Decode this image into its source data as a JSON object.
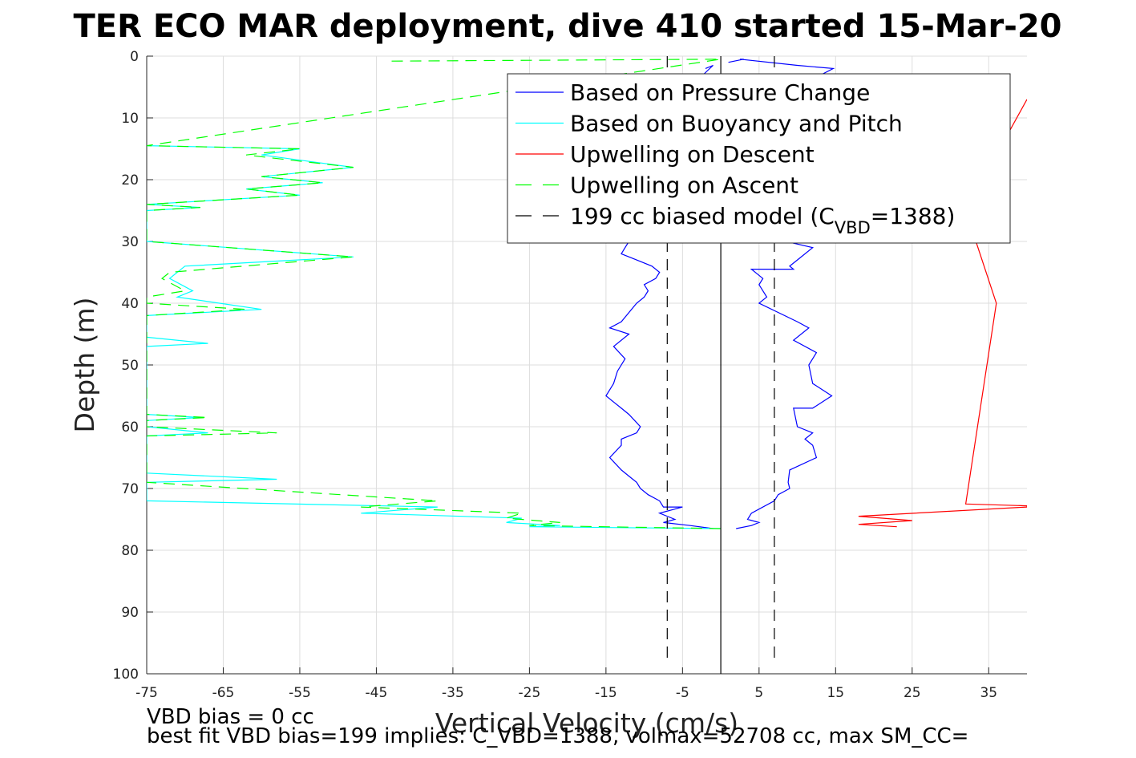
{
  "chart_data": {
    "type": "line",
    "title": "TER ECO MAR deployment, dive 410 started 15-Mar-20",
    "xlabel": "Vertical Velocity (cm/s)",
    "ylabel": "Depth (m)",
    "xlim": [
      -75,
      40
    ],
    "ylim": [
      0,
      100
    ],
    "y_reversed": true,
    "grid": true,
    "x_ticks": [
      -75,
      -65,
      -55,
      -45,
      -35,
      -25,
      -15,
      -5,
      5,
      15,
      25,
      35
    ],
    "y_ticks": [
      0,
      10,
      20,
      30,
      40,
      50,
      60,
      70,
      80,
      90,
      100
    ],
    "legend_position": "top-right",
    "series": [
      {
        "name": "Based on Pressure Change",
        "color": "#0000ff",
        "style": "solid",
        "x": [
          1,
          3,
          2.5,
          10,
          14.7,
          10,
          8,
          7,
          10,
          8.5,
          12,
          10,
          9,
          9.5,
          7,
          4,
          5.5,
          5,
          5.5,
          6,
          5,
          10,
          11.5,
          9.5,
          12.5,
          11.5,
          12,
          14.5,
          12,
          9.5,
          10,
          12,
          11,
          12,
          12.5,
          9,
          8.8,
          9,
          7.5,
          7,
          4,
          3.5,
          5,
          4,
          2
        ],
        "y": [
          1,
          0.5,
          0.5,
          1.5,
          2,
          5,
          10,
          18,
          26,
          30,
          31,
          33,
          34,
          34.5,
          34.5,
          34.5,
          36,
          37,
          38,
          39,
          40,
          43,
          44,
          46,
          48,
          50,
          53,
          55,
          57,
          57,
          60,
          61,
          62,
          63,
          65,
          67,
          69,
          70,
          71,
          72,
          74,
          75,
          75.5,
          76,
          76.5
        ]
      },
      {
        "name": "Based on Pressure Change",
        "color": "#0000ff",
        "style": "solid",
        "x": [
          -2,
          -1,
          -4,
          -6,
          -8,
          -10,
          -12,
          -12.5,
          -13,
          -11,
          -9,
          -8,
          -8.5,
          -10,
          -9.5,
          -10,
          -11,
          -13,
          -14.5,
          -12,
          -14,
          -12.5,
          -13.5,
          -14,
          -15,
          -14,
          -13,
          -12,
          -10.5,
          -11,
          -13,
          -13,
          -14.5,
          -13,
          -12,
          -11,
          -10.5,
          -9.5,
          -8,
          -7.5,
          -5,
          -8,
          -6,
          -7.5,
          -4,
          -1
        ],
        "y": [
          2,
          1.5,
          5,
          10,
          18,
          26,
          30,
          31,
          32,
          33,
          34,
          35,
          36,
          37,
          38,
          39,
          40,
          43,
          44,
          45,
          47,
          49,
          51,
          53,
          55,
          56,
          57,
          58,
          60,
          61,
          62,
          63,
          65,
          67,
          68,
          69,
          70,
          71,
          72,
          73,
          73,
          74,
          75,
          75.5,
          76,
          76.5
        ]
      },
      {
        "name": "Based on Buoyancy and Pitch",
        "color": "#00ffff",
        "style": "solid",
        "x": [
          -75,
          -55,
          -60,
          -48,
          -60,
          -52,
          -62,
          -55,
          -75,
          -68,
          -75,
          -75,
          -48,
          -70,
          -72,
          -69,
          -71,
          -60,
          -75,
          -75,
          -67,
          -75,
          -75,
          -75,
          -68,
          -75,
          -75,
          -67,
          -75,
          -75,
          -58,
          -75,
          -75,
          -37,
          -47,
          -26,
          -28,
          -21,
          -25,
          0
        ],
        "y": [
          14.5,
          15,
          16,
          18,
          19.5,
          20.5,
          21.5,
          22.5,
          24,
          24.5,
          25,
          30,
          32.5,
          34,
          36,
          38,
          39,
          41,
          42,
          45.5,
          46.5,
          47,
          56,
          58,
          58.5,
          59,
          60,
          61,
          61.5,
          67.5,
          68.5,
          69,
          72,
          73,
          74,
          74.8,
          75.5,
          76,
          76.2,
          76.5
        ]
      },
      {
        "name": "Upwelling on Descent",
        "color": "#ff0000",
        "style": "solid",
        "x": [
          40,
          32,
          36,
          32,
          40,
          40,
          18,
          25,
          18,
          23
        ],
        "y": [
          7,
          25,
          40,
          72.5,
          72.8,
          73,
          74.5,
          75.2,
          75.8,
          76.2
        ]
      },
      {
        "name": "Upwelling on Ascent",
        "color": "#00ff00",
        "style": "dashed",
        "x": [
          -43,
          0,
          -75,
          -55,
          -62,
          -48,
          -60,
          -52,
          -62,
          -55,
          -75,
          -68,
          -75,
          -75,
          -48,
          -72,
          -73,
          -70,
          -75,
          -75,
          -62,
          -75,
          -75,
          -67,
          -75,
          -75,
          -58,
          -75,
          -75,
          -37,
          -47,
          -26,
          -28,
          -21,
          -25,
          0
        ],
        "y": [
          0.8,
          0.5,
          14.5,
          15,
          16,
          18,
          19.5,
          20.5,
          21.5,
          22.5,
          24,
          24.5,
          25,
          30,
          32.5,
          35,
          36,
          38,
          39,
          40,
          41,
          42,
          58,
          58.5,
          59,
          60,
          61,
          61.5,
          69,
          72,
          73,
          74,
          74.8,
          75.5,
          76,
          76.5
        ]
      },
      {
        "name": "199 cc biased model (C_VBD=1388)",
        "color": "#000000",
        "style": "dashed",
        "x": [
          -7,
          -7
        ],
        "y": [
          0,
          98
        ]
      },
      {
        "name": "199 cc biased model (C_VBD=1388)",
        "color": "#000000",
        "style": "dashed",
        "x": [
          7,
          7
        ],
        "y": [
          0,
          98
        ]
      },
      {
        "name": "zero",
        "color": "#000000",
        "style": "solid",
        "x": [
          0,
          0
        ],
        "y": [
          0,
          100
        ]
      }
    ],
    "legend": [
      {
        "label": "Based on Pressure Change",
        "color": "#0000ff",
        "style": "solid"
      },
      {
        "label": "Based on Buoyancy and Pitch",
        "color": "#00ffff",
        "style": "solid"
      },
      {
        "label": "Upwelling on Descent",
        "color": "#ff0000",
        "style": "solid"
      },
      {
        "label": "Upwelling on Ascent",
        "color": "#00ff00",
        "style": "dashed"
      },
      {
        "label_main": "199 cc biased model (C",
        "label_sub": "VBD",
        "label_tail": "=1388)",
        "color": "#000000",
        "style": "dashed"
      }
    ],
    "footer_lines": [
      "VBD bias = 0 cc",
      "best fit VBD bias=199 implies: C_VBD=1388, volmax=52708 cc, max SM_CC="
    ]
  }
}
